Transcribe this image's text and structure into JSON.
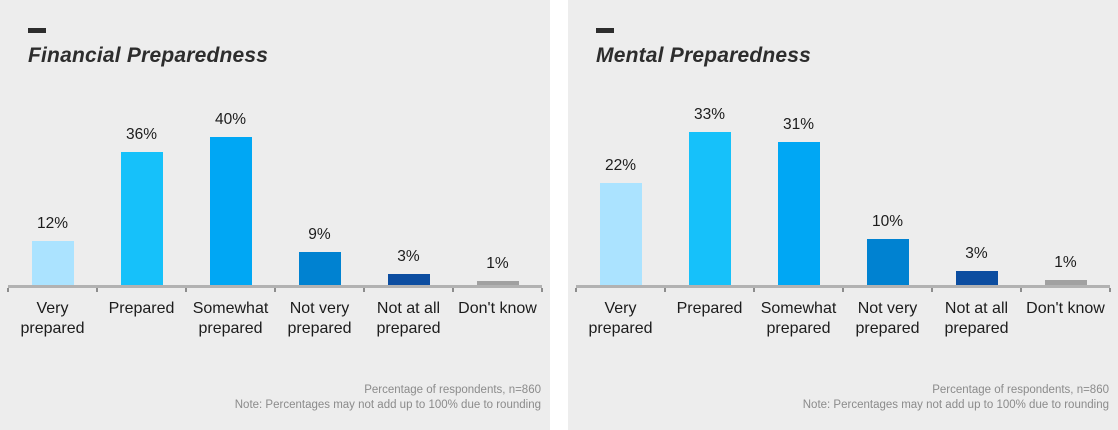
{
  "theme": {
    "panel_bg": "#ededed",
    "axis_color": "#b2b2b2",
    "tick_color": "#8d8d8d",
    "title_color": "#2d2d2d",
    "text_dark": "#1c1c1c",
    "muted": "#8b8b8b"
  },
  "chart_data": [
    {
      "type": "bar",
      "title": "Financial Preparedness",
      "categories": [
        "Very prepared",
        "Prepared",
        "Somewhat prepared",
        "Not very prepared",
        "Not at all prepared",
        "Don't know"
      ],
      "values": [
        12,
        36,
        40,
        9,
        3,
        1
      ],
      "value_labels": [
        "12%",
        "36%",
        "40%",
        "9%",
        "3%",
        "1%"
      ],
      "ylim": [
        0,
        50
      ],
      "grid": "off",
      "legend": "none",
      "bar_colors": [
        "#abe3ff",
        "#16c1fa",
        "#00a7f4",
        "#0082d1",
        "#0c4da0",
        "#a1a1a1"
      ],
      "note_line1": "Percentage of respondents, n=860",
      "note_line2": "Note: Percentages may not add up to 100% due to rounding"
    },
    {
      "type": "bar",
      "title": "Mental Preparedness",
      "categories": [
        "Very prepared",
        "Prepared",
        "Somewhat prepared",
        "Not very prepared",
        "Not at all prepared",
        "Don't know"
      ],
      "values": [
        22,
        33,
        31,
        10,
        3,
        1
      ],
      "value_labels": [
        "22%",
        "33%",
        "31%",
        "10%",
        "3%",
        "1%"
      ],
      "ylim": [
        0,
        40
      ],
      "grid": "off",
      "legend": "none",
      "bar_colors": [
        "#abe3ff",
        "#16c1fa",
        "#00a7f4",
        "#0082d1",
        "#0c4da0",
        "#a1a1a1"
      ],
      "note_line1": "Percentage of respondents, n=860",
      "note_line2": "Note: Percentages may not add up to 100% due to rounding"
    }
  ]
}
